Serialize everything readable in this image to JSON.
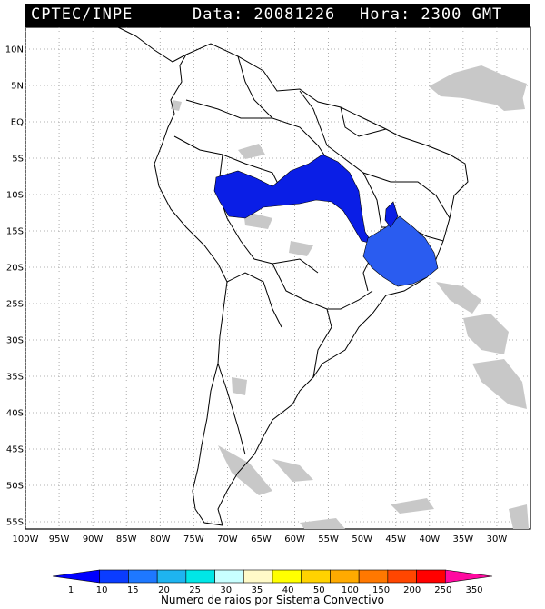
{
  "header": {
    "title": "CPTEC/INPE",
    "date_label": "Data: 20081226",
    "time_label": "Hora: 2300 GMT"
  },
  "map": {
    "lon_range": [
      -100,
      -25
    ],
    "lat_range": [
      -56,
      13
    ],
    "lat_labels": [
      "10N",
      "5N",
      "EQ",
      "5S",
      "10S",
      "15S",
      "20S",
      "25S",
      "30S",
      "35S",
      "40S",
      "45S",
      "50S",
      "55S"
    ],
    "lon_labels": [
      "100W",
      "95W",
      "90W",
      "85W",
      "80W",
      "75W",
      "70W",
      "65W",
      "60W",
      "55W",
      "50W",
      "45W",
      "40W",
      "35W",
      "30W"
    ],
    "colors": {
      "land_outline": "#000000",
      "grid": "#999999",
      "cloud": "#c8c8c8",
      "lightning": "#0a1ee6",
      "lightning_light": "#2a5cf0"
    }
  },
  "colorbar": {
    "labels": [
      "1",
      "10",
      "15",
      "20",
      "25",
      "30",
      "35",
      "40",
      "50",
      "100",
      "150",
      "200",
      "250",
      "350"
    ],
    "colors": [
      "#0000ff",
      "#0a3cff",
      "#1e78ff",
      "#1eb4f0",
      "#00e6e6",
      "#c8ffff",
      "#fffac8",
      "#ffff00",
      "#ffd200",
      "#ffaa00",
      "#ff7800",
      "#ff4600",
      "#ff0000",
      "#ff0aa0"
    ],
    "title": "Numero de raios por Sistema Convectivo"
  }
}
